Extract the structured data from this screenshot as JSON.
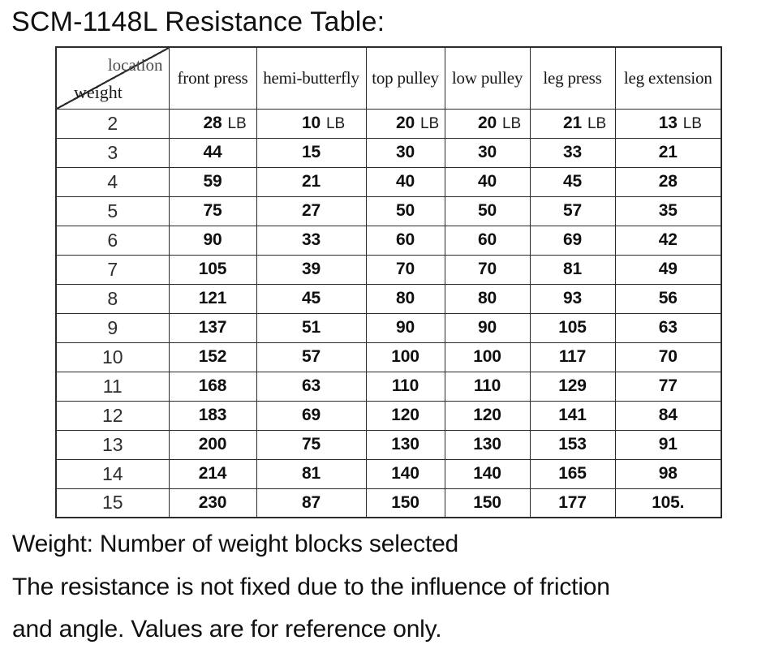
{
  "page": {
    "title": "SCM-1148L Resistance Table:"
  },
  "table": {
    "corner": {
      "top_label": "location",
      "bottom_label": "weight"
    },
    "columns": [
      "front press",
      "hemi-butterfly",
      "top pulley",
      "low pulley",
      "leg press",
      "leg extension"
    ],
    "unit": "LB",
    "rows": [
      {
        "weight": "2",
        "values": [
          "28",
          "10",
          "20",
          "20",
          "21",
          "13"
        ],
        "show_unit": true
      },
      {
        "weight": "3",
        "values": [
          "44",
          "15",
          "30",
          "30",
          "33",
          "21"
        ]
      },
      {
        "weight": "4",
        "values": [
          "59",
          "21",
          "40",
          "40",
          "45",
          "28"
        ]
      },
      {
        "weight": "5",
        "values": [
          "75",
          "27",
          "50",
          "50",
          "57",
          "35"
        ]
      },
      {
        "weight": "6",
        "values": [
          "90",
          "33",
          "60",
          "60",
          "69",
          "42"
        ]
      },
      {
        "weight": "7",
        "values": [
          "105",
          "39",
          "70",
          "70",
          "81",
          "49"
        ]
      },
      {
        "weight": "8",
        "values": [
          "121",
          "45",
          "80",
          "80",
          "93",
          "56"
        ]
      },
      {
        "weight": "9",
        "values": [
          "137",
          "51",
          "90",
          "90",
          "105",
          "63"
        ]
      },
      {
        "weight": "10",
        "values": [
          "152",
          "57",
          "100",
          "100",
          "117",
          "70"
        ]
      },
      {
        "weight": "11",
        "values": [
          "168",
          "63",
          "110",
          "110",
          "129",
          "77"
        ]
      },
      {
        "weight": "12",
        "values": [
          "183",
          "69",
          "120",
          "120",
          "141",
          "84"
        ]
      },
      {
        "weight": "13",
        "values": [
          "200",
          "75",
          "130",
          "130",
          "153",
          "91"
        ]
      },
      {
        "weight": "14",
        "values": [
          "214",
          "81",
          "140",
          "140",
          "165",
          "98"
        ]
      },
      {
        "weight": "15",
        "values": [
          "230",
          "87",
          "150",
          "150",
          "177",
          "105."
        ]
      }
    ]
  },
  "footer": {
    "lines": [
      "Weight: Number of weight blocks selected",
      "The resistance is not fixed due to the influence of friction",
      "and angle. Values are for reference only."
    ]
  }
}
